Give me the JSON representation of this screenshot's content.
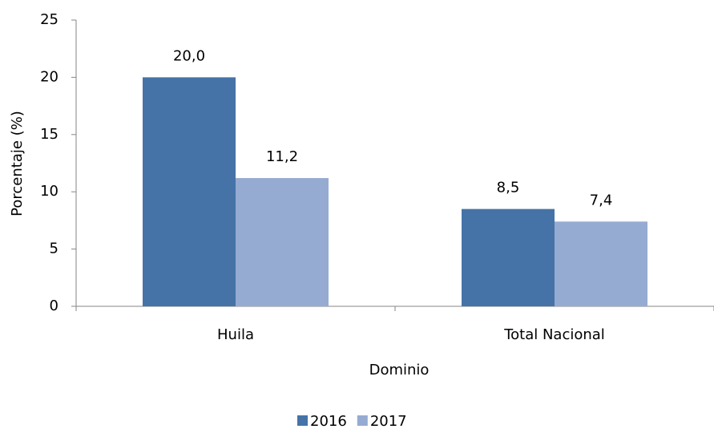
{
  "chart_data": {
    "type": "bar",
    "x_label": "Dominio",
    "y_label": "Porcentaje (%)",
    "categories": [
      "Huila",
      "Total Nacional"
    ],
    "series": [
      {
        "name": "2016",
        "color": "#4573a7",
        "values": [
          20.0,
          8.5
        ],
        "value_labels": [
          "20,0",
          "8,5"
        ]
      },
      {
        "name": "2017",
        "color": "#96abd2",
        "values": [
          11.2,
          7.4
        ],
        "value_labels": [
          "11,2",
          "7,4"
        ]
      }
    ],
    "ylim": [
      0,
      25
    ],
    "yticks": [
      0,
      5,
      10,
      15,
      20,
      25
    ],
    "grid": false,
    "legend": "bottom"
  }
}
